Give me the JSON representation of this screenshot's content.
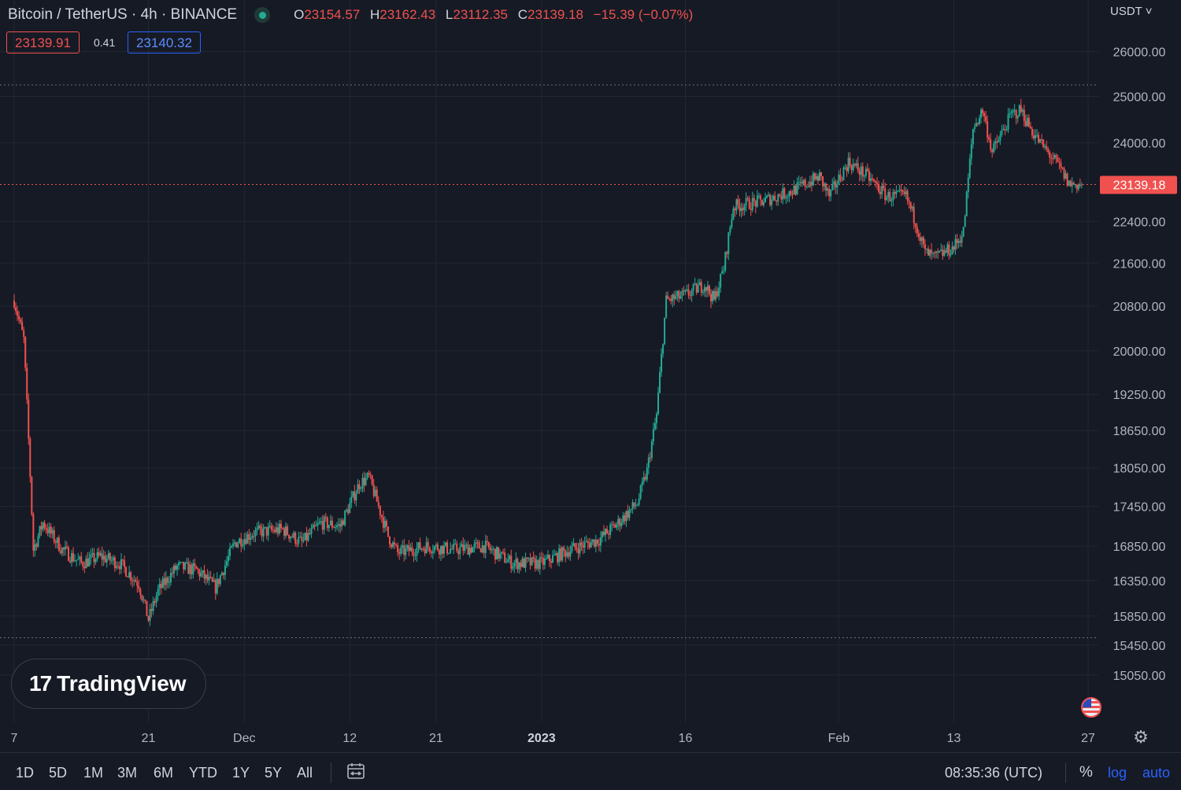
{
  "header": {
    "symbol": "Bitcoin / TetherUS · 4h · BINANCE",
    "open_label": "O",
    "open": "23154.57",
    "high_label": "H",
    "high": "23162.43",
    "low_label": "L",
    "low": "23112.35",
    "close_label": "C",
    "close": "23139.18",
    "change": "−15.39 (−0.07%)"
  },
  "trade": {
    "sell": "23139.91",
    "spread": "0.41",
    "buy": "23140.32"
  },
  "currency_label": "USDT ˅",
  "logo_text": "TradingView",
  "logo_mark": "17",
  "bottom_bar": {
    "ranges": [
      "1D",
      "5D",
      "1M",
      "3M",
      "6M",
      "YTD",
      "1Y",
      "5Y",
      "All"
    ],
    "time": "08:35:36 (UTC)",
    "percent": "%",
    "log": "log",
    "auto": "auto"
  },
  "colors": {
    "up": "#22ab94",
    "down": "#f0514f",
    "background": "#161a25",
    "grid": "#232734",
    "scale_bar": "#2962ff"
  },
  "icons": [
    "status-dot-icon",
    "calendar-range-icon",
    "us-flag-icon",
    "gear-icon",
    "tradingview-logo-icon"
  ],
  "chart_data": {
    "type": "candlestick",
    "title": "Bitcoin / TetherUS · 4h · BINANCE",
    "timeframe": "4h",
    "x_tick_labels": [
      "7",
      "21",
      "Dec",
      "12",
      "21",
      "2023",
      "16",
      "Feb",
      "13",
      "27"
    ],
    "y_tick_labels": [
      "26000.00",
      "25000.00",
      "24000.00",
      "22400.00",
      "21600.00",
      "20800.00",
      "20000.00",
      "19250.00",
      "18650.00",
      "18050.00",
      "17450.00",
      "16850.00",
      "16350.00",
      "15850.00",
      "15450.00",
      "15050.00"
    ],
    "ylim": [
      14700,
      26500
    ],
    "scale": "log",
    "last_price": "23139.18",
    "series": [
      {
        "name": "BTCUSDT",
        "anchors": [
          [
            "2022-11-07",
            20900
          ],
          [
            "2022-11-08",
            20200
          ],
          [
            "2022-11-09",
            16800
          ],
          [
            "2022-11-10",
            17200
          ],
          [
            "2022-11-12",
            16800
          ],
          [
            "2022-11-14",
            16600
          ],
          [
            "2022-11-16",
            16700
          ],
          [
            "2022-11-18",
            16600
          ],
          [
            "2022-11-20",
            16300
          ],
          [
            "2022-11-21",
            15800
          ],
          [
            "2022-11-22",
            16200
          ],
          [
            "2022-11-24",
            16550
          ],
          [
            "2022-11-26",
            16500
          ],
          [
            "2022-11-28",
            16250
          ],
          [
            "2022-11-30",
            16900
          ],
          [
            "2022-12-02",
            17050
          ],
          [
            "2022-12-05",
            17100
          ],
          [
            "2022-12-07",
            16900
          ],
          [
            "2022-12-09",
            17200
          ],
          [
            "2022-12-11",
            17150
          ],
          [
            "2022-12-13",
            17800
          ],
          [
            "2022-12-14",
            17900
          ],
          [
            "2022-12-16",
            17000
          ],
          [
            "2022-12-17",
            16750
          ],
          [
            "2022-12-20",
            16850
          ],
          [
            "2022-12-23",
            16800
          ],
          [
            "2022-12-26",
            16850
          ],
          [
            "2022-12-29",
            16600
          ],
          [
            "2023-01-01",
            16600
          ],
          [
            "2023-01-04",
            16800
          ],
          [
            "2023-01-07",
            16950
          ],
          [
            "2023-01-09",
            17200
          ],
          [
            "2023-01-11",
            17500
          ],
          [
            "2023-01-12",
            18000
          ],
          [
            "2023-01-13",
            18900
          ],
          [
            "2023-01-14",
            20900
          ],
          [
            "2023-01-16",
            21000
          ],
          [
            "2023-01-18",
            21200
          ],
          [
            "2023-01-19",
            20900
          ],
          [
            "2023-01-20",
            21500
          ],
          [
            "2023-01-21",
            22700
          ],
          [
            "2023-01-24",
            22800
          ],
          [
            "2023-01-27",
            23000
          ],
          [
            "2023-01-30",
            23300
          ],
          [
            "2023-01-31",
            22900
          ],
          [
            "2023-02-02",
            23600
          ],
          [
            "2023-02-04",
            23300
          ],
          [
            "2023-02-06",
            22900
          ],
          [
            "2023-02-08",
            22900
          ],
          [
            "2023-02-09",
            22400
          ],
          [
            "2023-02-10",
            21800
          ],
          [
            "2023-02-11",
            21700
          ],
          [
            "2023-02-13",
            21900
          ],
          [
            "2023-02-14",
            22200
          ],
          [
            "2023-02-15",
            24300
          ],
          [
            "2023-02-16",
            24700
          ],
          [
            "2023-02-17",
            23800
          ],
          [
            "2023-02-19",
            24600
          ],
          [
            "2023-02-20",
            24700
          ],
          [
            "2023-02-21",
            24300
          ],
          [
            "2023-02-22",
            24000
          ],
          [
            "2023-02-24",
            23500
          ],
          [
            "2023-02-25",
            23150
          ],
          [
            "2023-02-26",
            23139.18
          ]
        ]
      }
    ],
    "reference_lines": [
      25250,
      23139.18,
      15550
    ]
  }
}
